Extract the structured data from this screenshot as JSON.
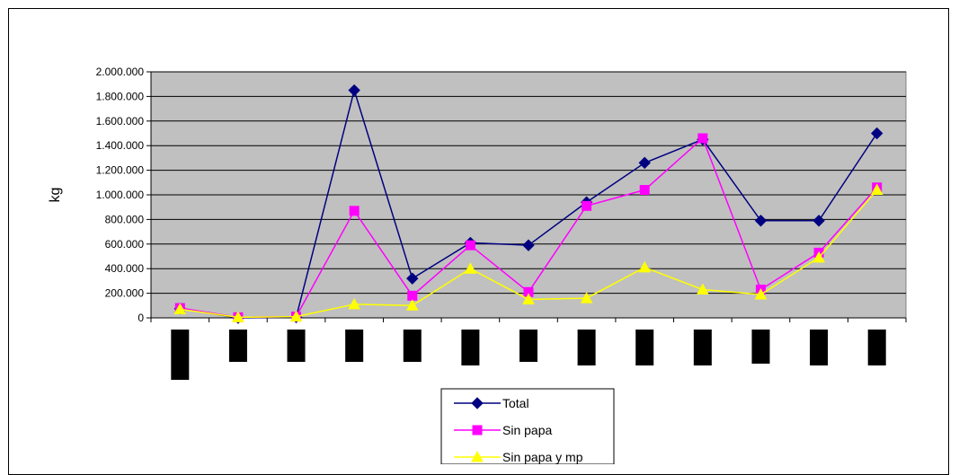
{
  "chart_data": {
    "type": "line",
    "title": "",
    "xlabel": "",
    "ylabel": "kg",
    "ylim": [
      0,
      2000000
    ],
    "yticks": [
      "0",
      "200.000",
      "400.000",
      "600.000",
      "800.000",
      "1.000.000",
      "1.200.000",
      "1.400.000",
      "1.600.000",
      "1.800.000",
      "2.000.000"
    ],
    "grid": true,
    "plot_background": "#c0c0c0",
    "legend_position": "bottom",
    "category_count": 13,
    "series": [
      {
        "name": "Total",
        "color": "#000080",
        "marker": "diamond",
        "values": [
          75000,
          0,
          5000,
          1850000,
          320000,
          610000,
          590000,
          940000,
          1260000,
          1450000,
          790000,
          790000,
          1500000
        ]
      },
      {
        "name": "Sin papa",
        "color": "#ff00ff",
        "marker": "square",
        "values": [
          80000,
          5000,
          10000,
          870000,
          180000,
          590000,
          210000,
          910000,
          1040000,
          1460000,
          230000,
          530000,
          1060000
        ]
      },
      {
        "name": "Sin papa y mp",
        "color": "#ffff00",
        "marker": "triangle",
        "values": [
          70000,
          5000,
          10000,
          110000,
          100000,
          400000,
          150000,
          160000,
          410000,
          230000,
          190000,
          490000,
          1040000
        ]
      }
    ]
  }
}
